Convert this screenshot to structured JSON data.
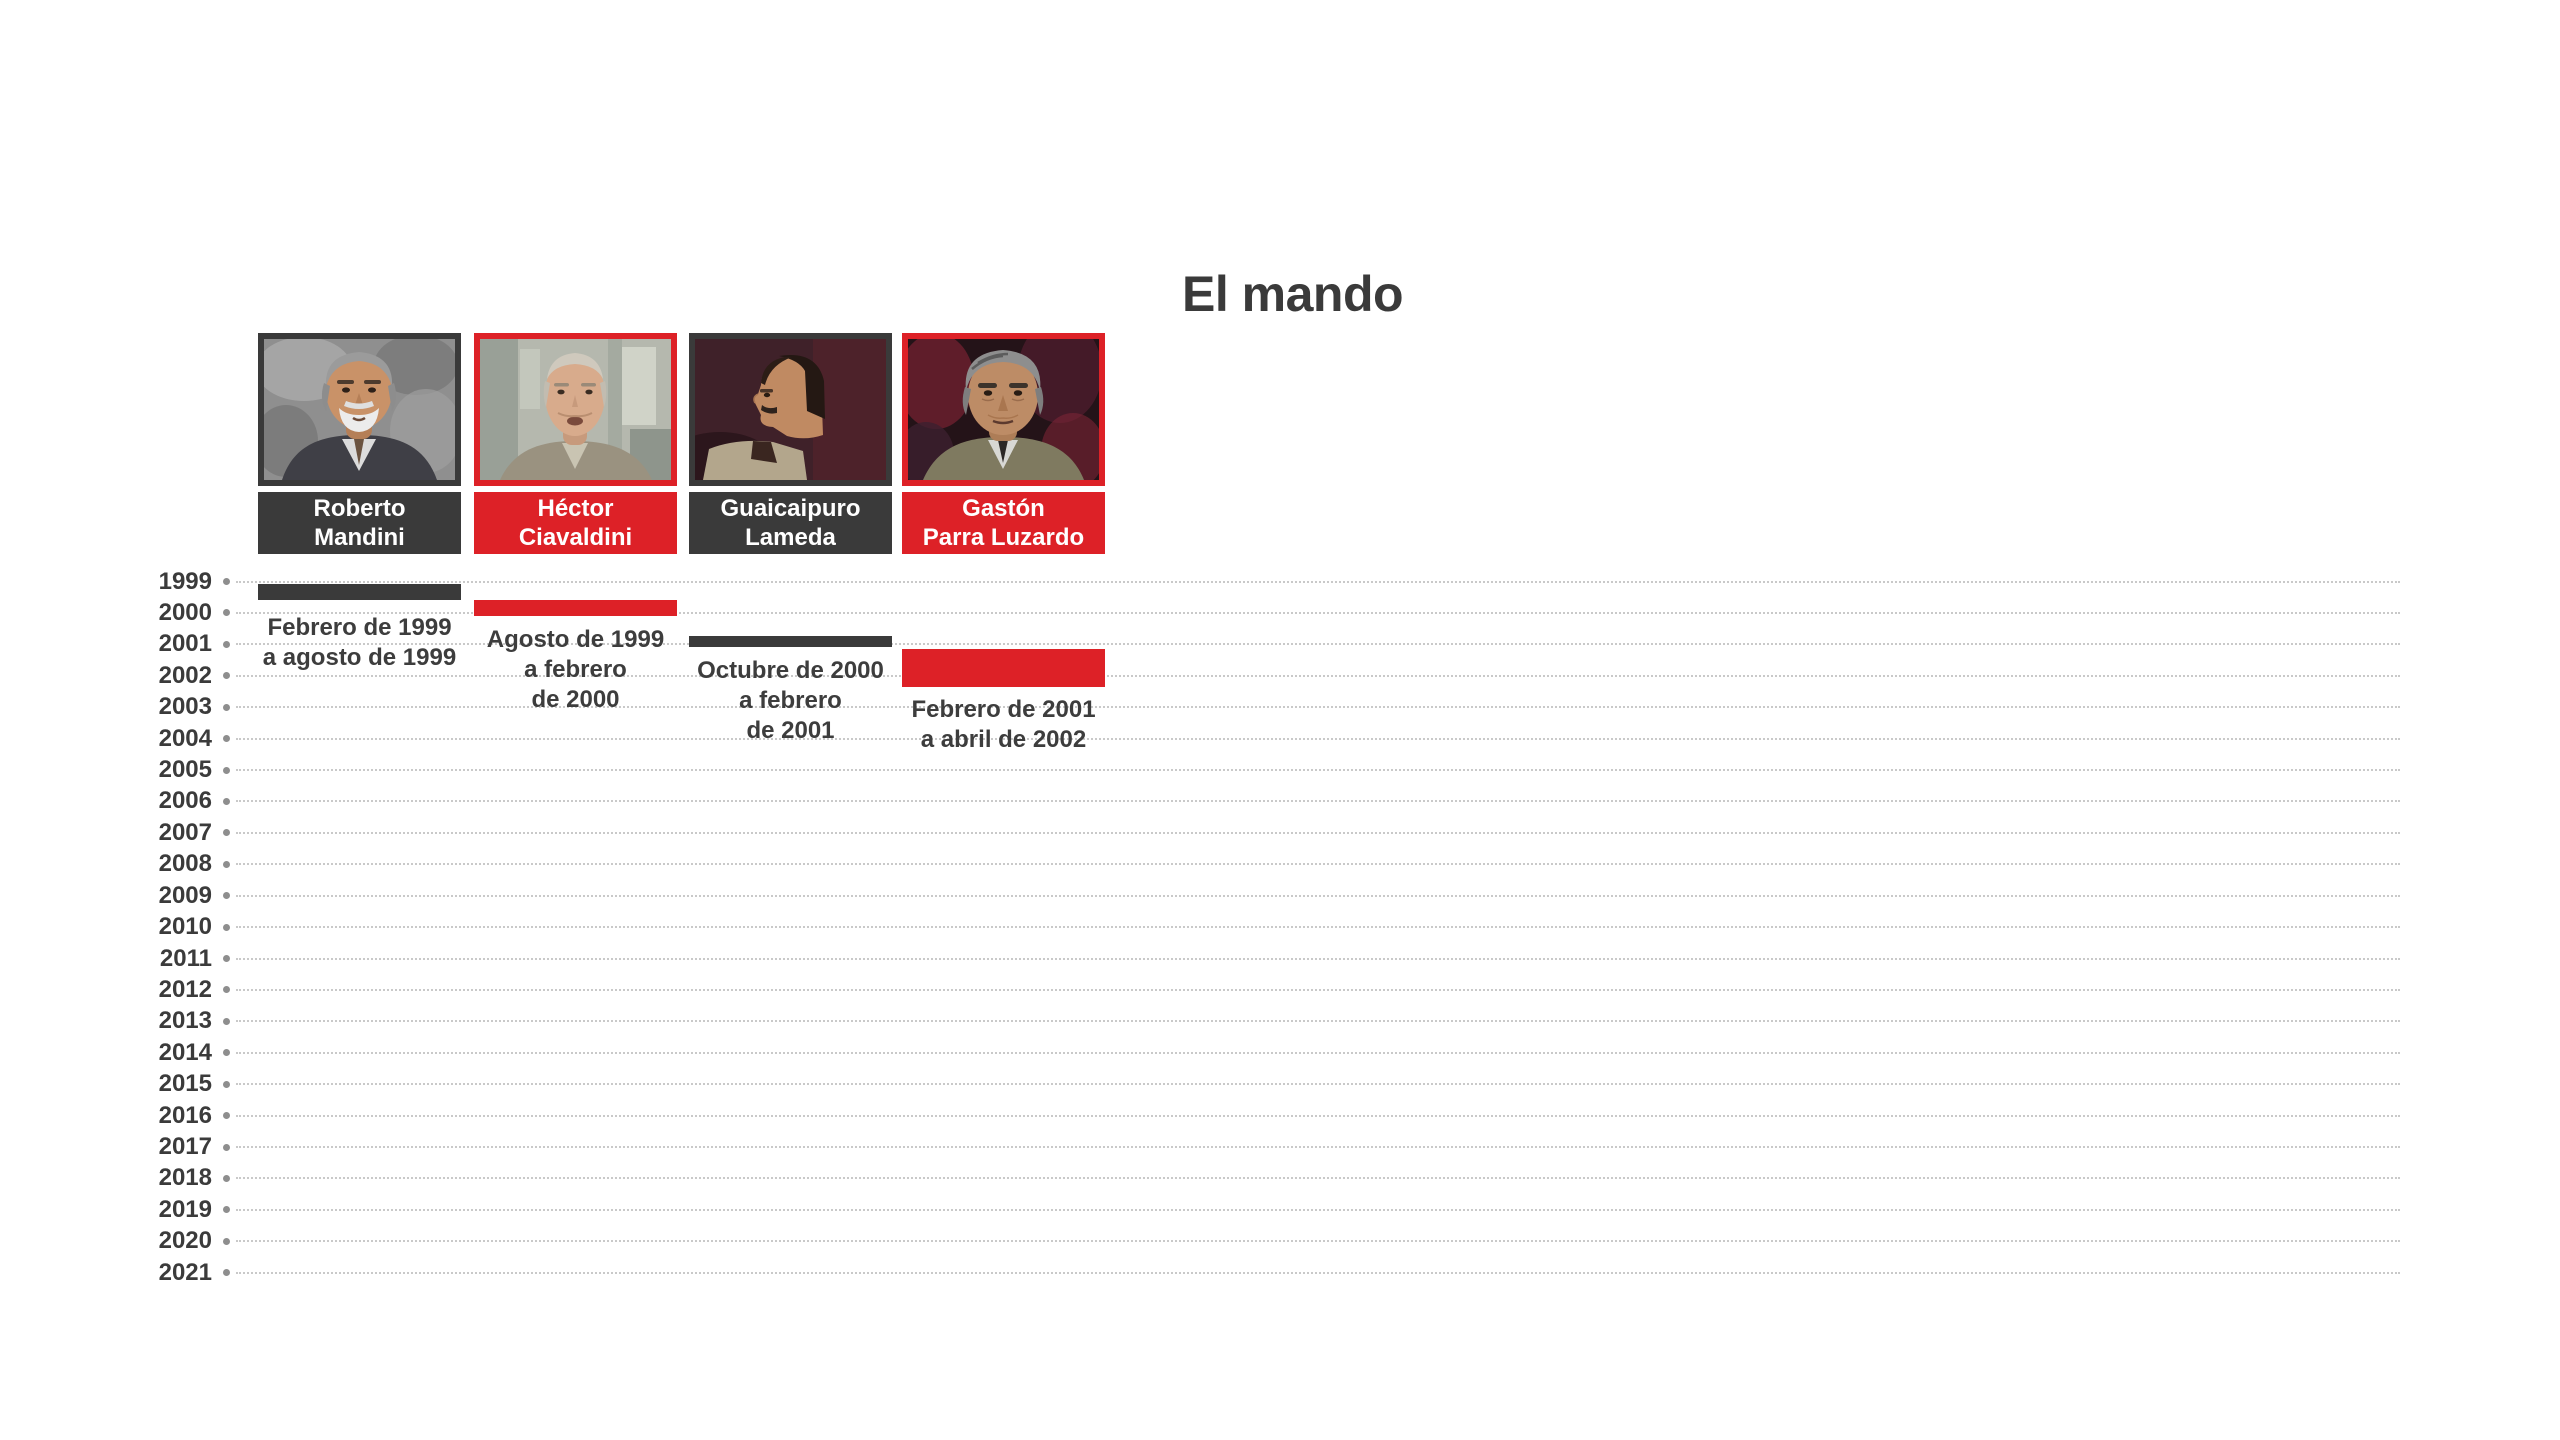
{
  "title": "El mando",
  "colors": {
    "dark": "#3a3a3a",
    "red": "#dd2127",
    "text": "#3d3d3d",
    "grid_line": "#c9c9c9",
    "grid_dot": "#8e8e8e",
    "background": "#ffffff",
    "name_text": "#ffffff"
  },
  "people": [
    {
      "name": "Roberto Mandini",
      "name_lines": [
        "Roberto",
        "Mandini"
      ],
      "period_lines": [
        "Febrero de 1999",
        "a agosto de 1999"
      ],
      "color_key": "dark"
    },
    {
      "name": "Héctor Ciavaldini",
      "name_lines": [
        "Héctor",
        "Ciavaldini"
      ],
      "period_lines": [
        "Agosto de 1999",
        "a febrero",
        "de 2000"
      ],
      "color_key": "red"
    },
    {
      "name": "Guaicaipuro Lameda",
      "name_lines": [
        "Guaicaipuro",
        "Lameda"
      ],
      "period_lines": [
        "Octubre de 2000",
        "a febrero",
        "de 2001"
      ],
      "color_key": "dark"
    },
    {
      "name": "Gastón Parra Luzardo",
      "name_lines": [
        "Gastón",
        "Parra Luzardo"
      ],
      "period_lines": [
        "Febrero de 2001",
        "a abril de 2002"
      ],
      "color_key": "red"
    }
  ],
  "timeline": {
    "years": [
      "1999",
      "2000",
      "2001",
      "2002",
      "2003",
      "2004",
      "2005",
      "2006",
      "2007",
      "2008",
      "2009",
      "2010",
      "2011",
      "2012",
      "2013",
      "2014",
      "2015",
      "2016",
      "2017",
      "2018",
      "2019",
      "2020",
      "2021"
    ]
  },
  "chart_data": {
    "type": "bar",
    "subtype": "timeline-gantt",
    "title": "El mando",
    "time_axis": {
      "orientation": "vertical",
      "tick_labels": [
        "1999",
        "2000",
        "2001",
        "2002",
        "2003",
        "2004",
        "2005",
        "2006",
        "2007",
        "2008",
        "2009",
        "2010",
        "2011",
        "2012",
        "2013",
        "2014",
        "2015",
        "2016",
        "2017",
        "2018",
        "2019",
        "2020",
        "2021"
      ],
      "range": [
        1999,
        2021
      ]
    },
    "grid": "horizontal dotted lines with start dot markers",
    "legend_position": "none",
    "series": [
      {
        "name": "Roberto Mandini",
        "start": 1999.083,
        "end": 1999.583,
        "start_label": "Febrero de 1999",
        "end_label": "agosto de 1999",
        "color": "#3a3a3a"
      },
      {
        "name": "Héctor Ciavaldini",
        "start": 1999.583,
        "end": 2000.083,
        "start_label": "Agosto de 1999",
        "end_label": "febrero de 2000",
        "color": "#dd2127"
      },
      {
        "name": "Guaicaipuro Lameda",
        "start": 2000.75,
        "end": 2001.083,
        "start_label": "Octubre de 2000",
        "end_label": "febrero de 2001",
        "color": "#3a3a3a"
      },
      {
        "name": "Gastón Parra Luzardo",
        "start": 2001.083,
        "end": 2002.25,
        "start_label": "Febrero de 2001",
        "end_label": "abril de 2002",
        "color": "#dd2127"
      }
    ]
  }
}
